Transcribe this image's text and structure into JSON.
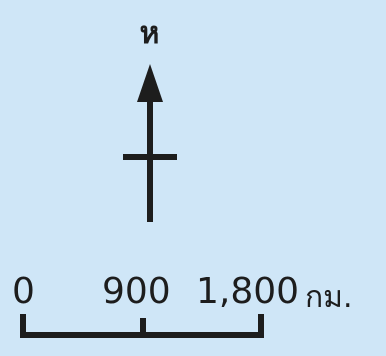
{
  "legend": {
    "north_label": "ห",
    "scale": {
      "ticks": [
        "0",
        "900",
        "1,800"
      ],
      "unit": "กม."
    },
    "colors": {
      "background": "#cfe6f7",
      "ink": "#1d1d1d"
    }
  }
}
